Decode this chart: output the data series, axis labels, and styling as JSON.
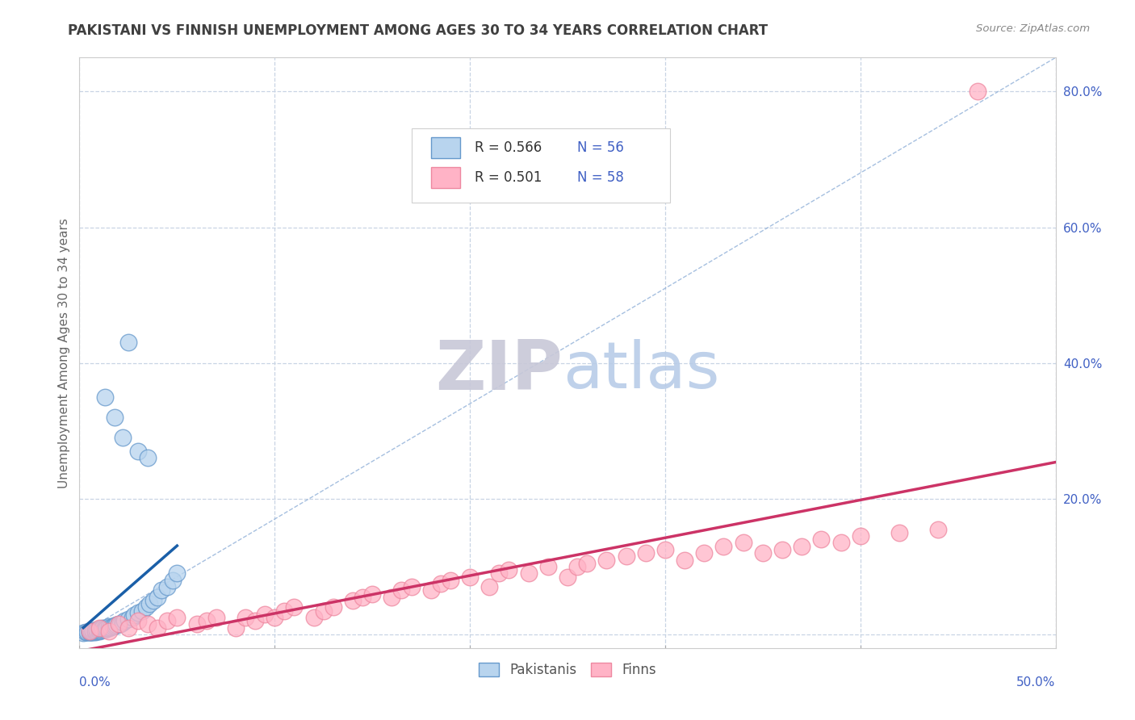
{
  "title": "PAKISTANI VS FINNISH UNEMPLOYMENT AMONG AGES 30 TO 34 YEARS CORRELATION CHART",
  "source_text": "Source: ZipAtlas.com",
  "ylabel": "Unemployment Among Ages 30 to 34 years",
  "xtick_left_label": "0.0%",
  "xtick_right_label": "50.0%",
  "xlim": [
    0.0,
    0.5
  ],
  "ylim": [
    -0.02,
    0.85
  ],
  "ytick_positions": [
    0.0,
    0.2,
    0.4,
    0.6,
    0.8
  ],
  "ytick_labels": [
    "",
    "20.0%",
    "40.0%",
    "60.0%",
    "80.0%"
  ],
  "legend_r1": "R = 0.566",
  "legend_n1": "N = 56",
  "legend_r2": "R = 0.501",
  "legend_n2": "N = 58",
  "watermark_zip": "ZIP",
  "watermark_atlas": "atlas",
  "pak_face_color": "#b8d4ee",
  "pak_edge_color": "#6699cc",
  "finn_face_color": "#ffb3c6",
  "finn_edge_color": "#ee88a0",
  "pak_trend_color": "#1a5fa8",
  "finn_trend_color": "#cc3366",
  "grid_color": "#c8d4e4",
  "bg_color": "#ffffff",
  "title_color": "#404040",
  "axis_val_color": "#4060c4",
  "legend_text_color": "#333333",
  "watermark_zip_color": "#c8c8d8",
  "watermark_atlas_color": "#b8cce8",
  "source_color": "#888888",
  "diagonal_color": "#90b0d8",
  "pakistani_x": [
    0.002,
    0.003,
    0.004,
    0.004,
    0.005,
    0.005,
    0.005,
    0.006,
    0.006,
    0.006,
    0.007,
    0.007,
    0.008,
    0.008,
    0.008,
    0.009,
    0.009,
    0.01,
    0.01,
    0.01,
    0.011,
    0.011,
    0.012,
    0.012,
    0.013,
    0.013,
    0.014,
    0.015,
    0.015,
    0.016,
    0.017,
    0.018,
    0.019,
    0.02,
    0.021,
    0.022,
    0.023,
    0.025,
    0.027,
    0.028,
    0.03,
    0.032,
    0.034,
    0.036,
    0.038,
    0.04,
    0.042,
    0.045,
    0.048,
    0.05,
    0.013,
    0.018,
    0.022,
    0.025,
    0.03,
    0.035
  ],
  "pakistani_y": [
    0.002,
    0.003,
    0.003,
    0.004,
    0.003,
    0.004,
    0.005,
    0.003,
    0.004,
    0.005,
    0.004,
    0.006,
    0.004,
    0.005,
    0.006,
    0.005,
    0.007,
    0.005,
    0.006,
    0.008,
    0.006,
    0.008,
    0.007,
    0.009,
    0.007,
    0.01,
    0.009,
    0.01,
    0.012,
    0.011,
    0.012,
    0.013,
    0.014,
    0.015,
    0.016,
    0.018,
    0.02,
    0.022,
    0.025,
    0.028,
    0.032,
    0.035,
    0.04,
    0.045,
    0.05,
    0.055,
    0.065,
    0.07,
    0.08,
    0.09,
    0.35,
    0.32,
    0.29,
    0.43,
    0.27,
    0.26
  ],
  "finnish_x": [
    0.005,
    0.01,
    0.015,
    0.02,
    0.025,
    0.03,
    0.035,
    0.04,
    0.045,
    0.05,
    0.06,
    0.065,
    0.07,
    0.08,
    0.085,
    0.09,
    0.095,
    0.1,
    0.105,
    0.11,
    0.12,
    0.125,
    0.13,
    0.14,
    0.145,
    0.15,
    0.16,
    0.165,
    0.17,
    0.18,
    0.185,
    0.19,
    0.2,
    0.21,
    0.215,
    0.22,
    0.23,
    0.24,
    0.25,
    0.255,
    0.26,
    0.27,
    0.28,
    0.29,
    0.3,
    0.31,
    0.32,
    0.33,
    0.34,
    0.35,
    0.36,
    0.37,
    0.38,
    0.39,
    0.4,
    0.42,
    0.44,
    0.46
  ],
  "finnish_y": [
    0.005,
    0.01,
    0.005,
    0.015,
    0.01,
    0.02,
    0.015,
    0.01,
    0.02,
    0.025,
    0.015,
    0.02,
    0.025,
    0.01,
    0.025,
    0.02,
    0.03,
    0.025,
    0.035,
    0.04,
    0.025,
    0.035,
    0.04,
    0.05,
    0.055,
    0.06,
    0.055,
    0.065,
    0.07,
    0.065,
    0.075,
    0.08,
    0.085,
    0.07,
    0.09,
    0.095,
    0.09,
    0.1,
    0.085,
    0.1,
    0.105,
    0.11,
    0.115,
    0.12,
    0.125,
    0.11,
    0.12,
    0.13,
    0.135,
    0.12,
    0.125,
    0.13,
    0.14,
    0.135,
    0.145,
    0.15,
    0.155,
    0.8
  ],
  "pak_trend_x": [
    0.002,
    0.05
  ],
  "pak_trend_y_intercept": -0.03,
  "pak_trend_slope": 2.6,
  "finn_trend_x": [
    0.0,
    0.5
  ],
  "finn_trend_y_intercept": -0.015,
  "finn_trend_slope": 0.6
}
